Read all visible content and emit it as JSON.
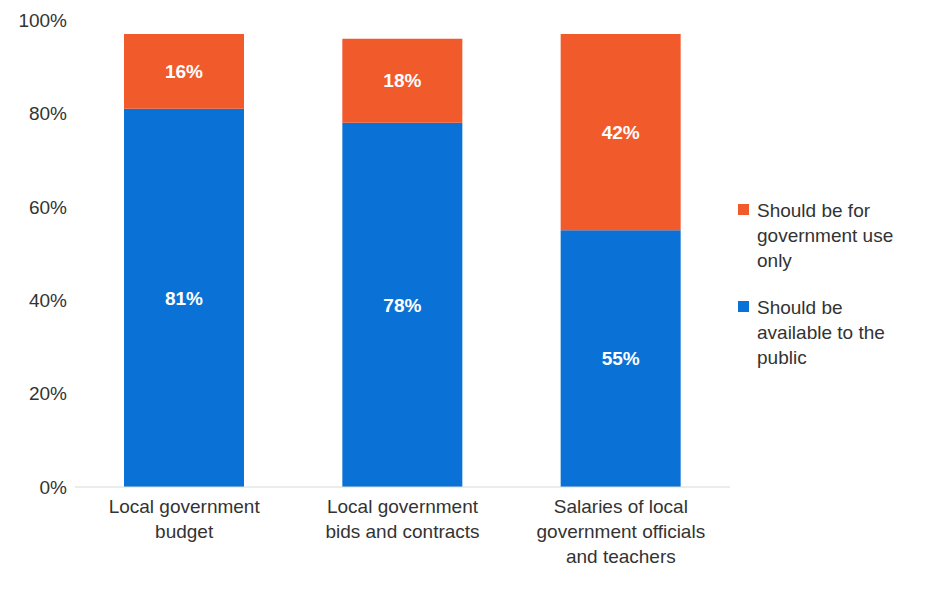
{
  "chart_data": {
    "type": "bar",
    "stacked": true,
    "data_labels": true,
    "grid": false,
    "legend": "right",
    "categories": [
      "Local government budget",
      "Local government bids and contracts",
      "Salaries of local government officials and teachers"
    ],
    "series": [
      {
        "name": "Should be available to the public",
        "color": "#0a72d6",
        "values": [
          81,
          78,
          55
        ],
        "value_labels": [
          "81%",
          "78%",
          "55%"
        ]
      },
      {
        "name": "Should be for government use only",
        "color": "#f15a2b",
        "values": [
          16,
          18,
          42
        ],
        "value_labels": [
          "16%",
          "18%",
          "42%"
        ]
      }
    ],
    "ylim": [
      0,
      100
    ],
    "yticks": [
      {
        "value": 0,
        "label": "0%"
      },
      {
        "value": 20,
        "label": "20%"
      },
      {
        "value": 40,
        "label": "40%"
      },
      {
        "value": 60,
        "label": "60%"
      },
      {
        "value": 80,
        "label": "80%"
      },
      {
        "value": 100,
        "label": "100%"
      }
    ]
  }
}
